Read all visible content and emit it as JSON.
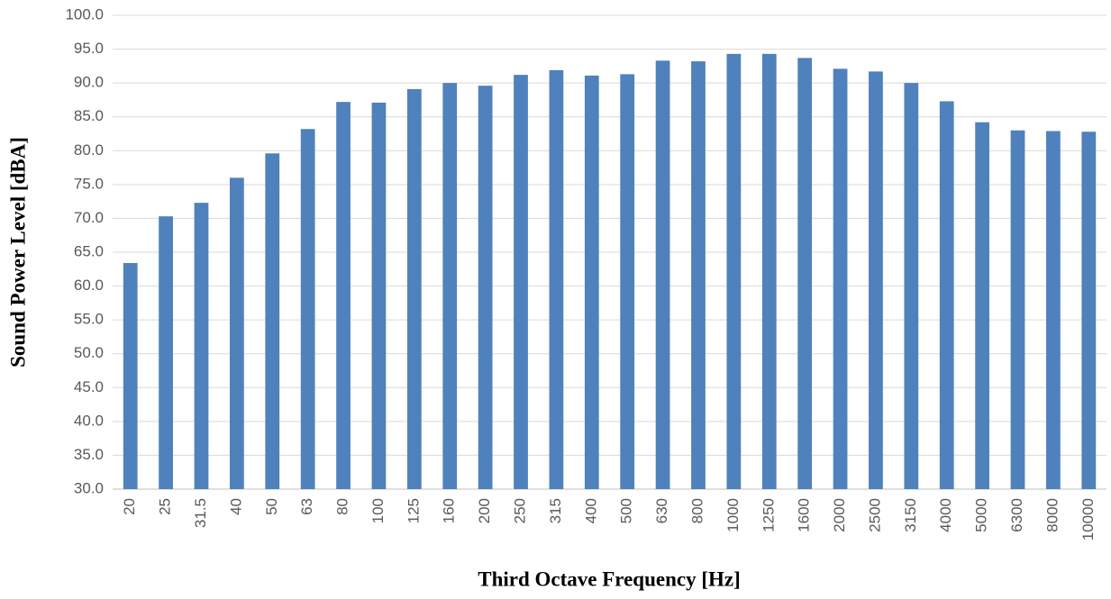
{
  "chart_data": {
    "type": "bar",
    "x_label": "Third Octave Frequency [Hz]",
    "y_label": "Sound Power Level [dBA]",
    "categories": [
      "20",
      "25",
      "31.5",
      "40",
      "50",
      "63",
      "80",
      "100",
      "125",
      "160",
      "200",
      "250",
      "315",
      "400",
      "500",
      "630",
      "800",
      "1000",
      "1250",
      "1600",
      "2000",
      "2500",
      "3150",
      "4000",
      "5000",
      "6300",
      "8000",
      "10000"
    ],
    "values": [
      63.4,
      70.3,
      72.3,
      76.0,
      79.6,
      83.2,
      87.2,
      87.1,
      89.1,
      90.0,
      89.6,
      91.2,
      91.9,
      91.1,
      91.3,
      93.3,
      93.2,
      94.3,
      94.3,
      93.7,
      92.1,
      91.7,
      90.0,
      87.3,
      84.2,
      83.0,
      82.9,
      82.8
    ],
    "color": "#4f81bd",
    "ylim": [
      30,
      100
    ],
    "yticks": [
      {
        "value": 30,
        "label": "30.0"
      },
      {
        "value": 35,
        "label": "35.0"
      },
      {
        "value": 40,
        "label": "40.0"
      },
      {
        "value": 45,
        "label": "45.0"
      },
      {
        "value": 50,
        "label": "50.0"
      },
      {
        "value": 55,
        "label": "55.0"
      },
      {
        "value": 60,
        "label": "60.0"
      },
      {
        "value": 65,
        "label": "65.0"
      },
      {
        "value": 70,
        "label": "70.0"
      },
      {
        "value": 75,
        "label": "75.0"
      },
      {
        "value": 80,
        "label": "80.0"
      },
      {
        "value": 85,
        "label": "85.0"
      },
      {
        "value": 90,
        "label": "90.0"
      },
      {
        "value": 95,
        "label": "95.0"
      },
      {
        "value": 100,
        "label": "100.0"
      }
    ],
    "grid": true
  }
}
